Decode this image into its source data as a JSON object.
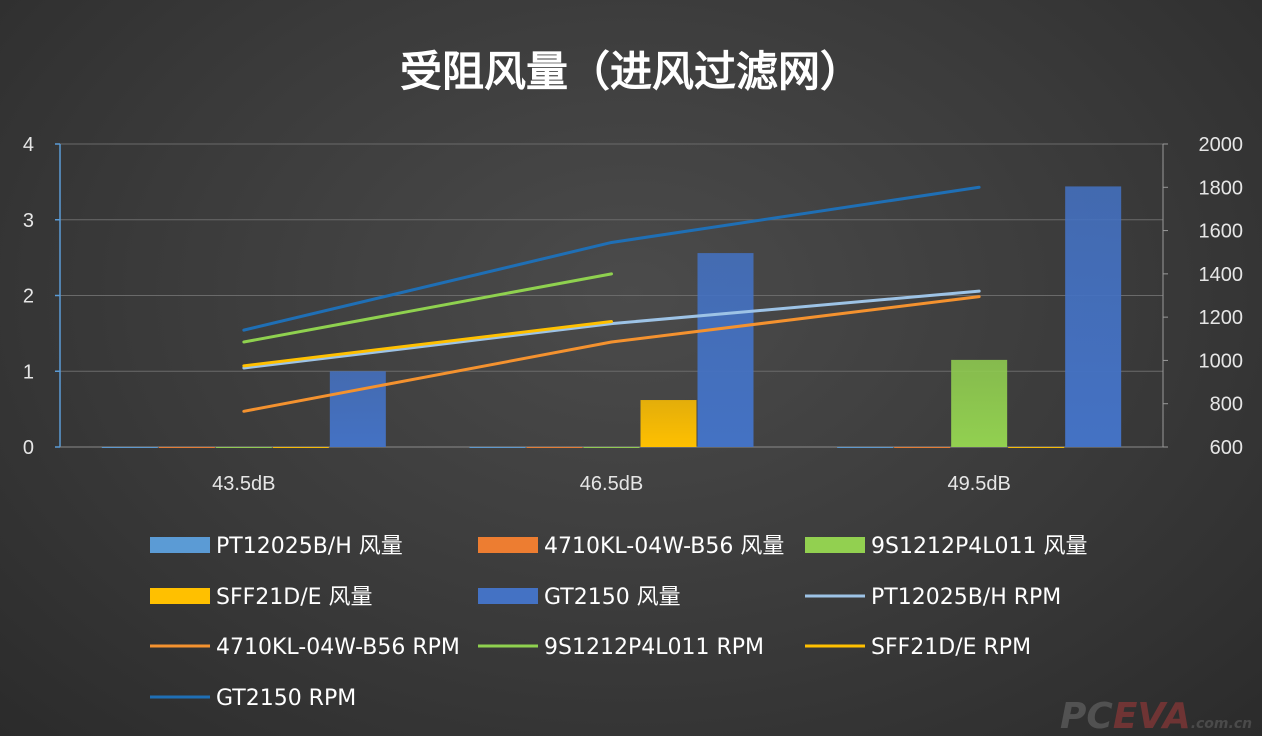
{
  "chart_data": {
    "type": "bar",
    "title": "受阻风量（进风过滤网）",
    "categories": [
      "43.5dB",
      "46.5dB",
      "49.5dB"
    ],
    "y_left": {
      "min": 0,
      "max": 4,
      "ticks": [
        0,
        1,
        2,
        3,
        4
      ]
    },
    "y_right": {
      "min": 600,
      "max": 2000,
      "ticks": [
        600,
        800,
        1000,
        1200,
        1400,
        1600,
        1800,
        2000
      ]
    },
    "grid": true,
    "legend_position": "bottom",
    "bar_series": [
      {
        "name": "PT12025B/H 风量",
        "values": [
          0,
          0,
          0
        ],
        "color": "#5b9bd5"
      },
      {
        "name": "4710KL-04W-B56 风量",
        "values": [
          0,
          0,
          0
        ],
        "color": "#ed7d31"
      },
      {
        "name": "9S1212P4L011 风量",
        "values": [
          0,
          0,
          1.15
        ],
        "color": "#92d050"
      },
      {
        "name": "SFF21D/E 风量",
        "values": [
          0,
          0.62,
          0
        ],
        "color": "#ffc000"
      },
      {
        "name": "GT2150 风量",
        "values": [
          1.0,
          2.56,
          3.44
        ],
        "color": "#4472c4"
      }
    ],
    "line_series": [
      {
        "name": "PT12025B/H RPM",
        "values": [
          965,
          1170,
          1320
        ],
        "color": "#9dc3e6"
      },
      {
        "name": "4710KL-04W-B56 RPM",
        "values": [
          765,
          1085,
          1295
        ],
        "color": "#f4922f"
      },
      {
        "name": "9S1212P4L011 RPM",
        "values": [
          1085,
          1400,
          null
        ],
        "color": "#8fd14f"
      },
      {
        "name": "SFF21D/E RPM",
        "values": [
          975,
          1180,
          null
        ],
        "color": "#ffc000"
      },
      {
        "name": "GT2150 RPM",
        "values": [
          1140,
          1545,
          1800
        ],
        "color": "#1f6fb5"
      }
    ]
  },
  "legend": {
    "items": [
      {
        "label": "PT12025B/H 风量",
        "kind": "bar",
        "color": "#5b9bd5"
      },
      {
        "label": "4710KL-04W-B56 风量",
        "kind": "bar",
        "color": "#ed7d31"
      },
      {
        "label": "9S1212P4L011 风量",
        "kind": "bar",
        "color": "#92d050"
      },
      {
        "label": "SFF21D/E 风量",
        "kind": "bar",
        "color": "#ffc000"
      },
      {
        "label": "GT2150 风量",
        "kind": "bar",
        "color": "#4472c4"
      },
      {
        "label": "PT12025B/H RPM",
        "kind": "line",
        "color": "#9dc3e6"
      },
      {
        "label": "4710KL-04W-B56 RPM",
        "kind": "line",
        "color": "#f4922f"
      },
      {
        "label": "9S1212P4L011 RPM",
        "kind": "line",
        "color": "#8fd14f"
      },
      {
        "label": "SFF21D/E RPM",
        "kind": "line",
        "color": "#ffc000"
      },
      {
        "label": "GT2150 RPM",
        "kind": "line",
        "color": "#1f6fb5"
      }
    ]
  },
  "watermark": {
    "part1": "PC",
    "part2": "EVA",
    "part3": ".com.cn"
  }
}
